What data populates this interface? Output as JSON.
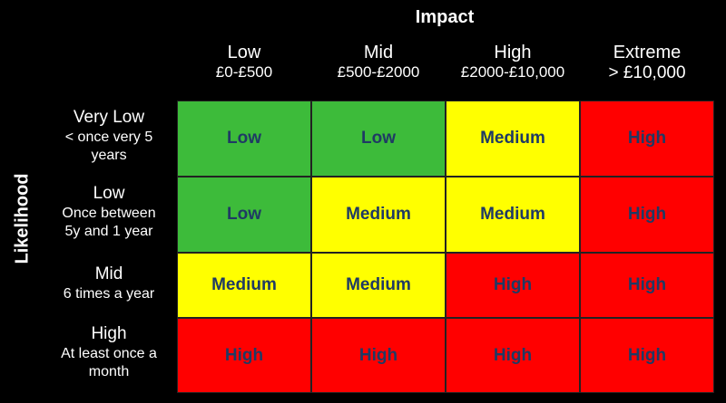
{
  "impact_title": "Impact",
  "likelihood_title": "Likelihood",
  "columns": [
    {
      "name": "Low",
      "range": "£0-£500"
    },
    {
      "name": "Mid",
      "range": "£500-£2000"
    },
    {
      "name": "High",
      "range": "£2000-£10,000"
    },
    {
      "name": "Extreme",
      "range": "> £10,000"
    }
  ],
  "rows": [
    {
      "name": "Very Low",
      "desc_line1": "< once very 5",
      "desc_line2": "years"
    },
    {
      "name": "Low",
      "desc_line1": "Once between",
      "desc_line2": "5y and 1 year"
    },
    {
      "name": "Mid",
      "desc_line1": "6 times a year",
      "desc_line2": ""
    },
    {
      "name": "High",
      "desc_line1": "At least once a",
      "desc_line2": "month"
    }
  ],
  "cells": [
    [
      "Low",
      "Low",
      "Medium",
      "High"
    ],
    [
      "Low",
      "Medium",
      "Medium",
      "High"
    ],
    [
      "Medium",
      "Medium",
      "High",
      "High"
    ],
    [
      "High",
      "High",
      "High",
      "High"
    ]
  ],
  "colors": {
    "Low": "#3dbb3a",
    "Medium": "#ffff00",
    "High": "#ff0000",
    "text": "#1f3a64"
  }
}
